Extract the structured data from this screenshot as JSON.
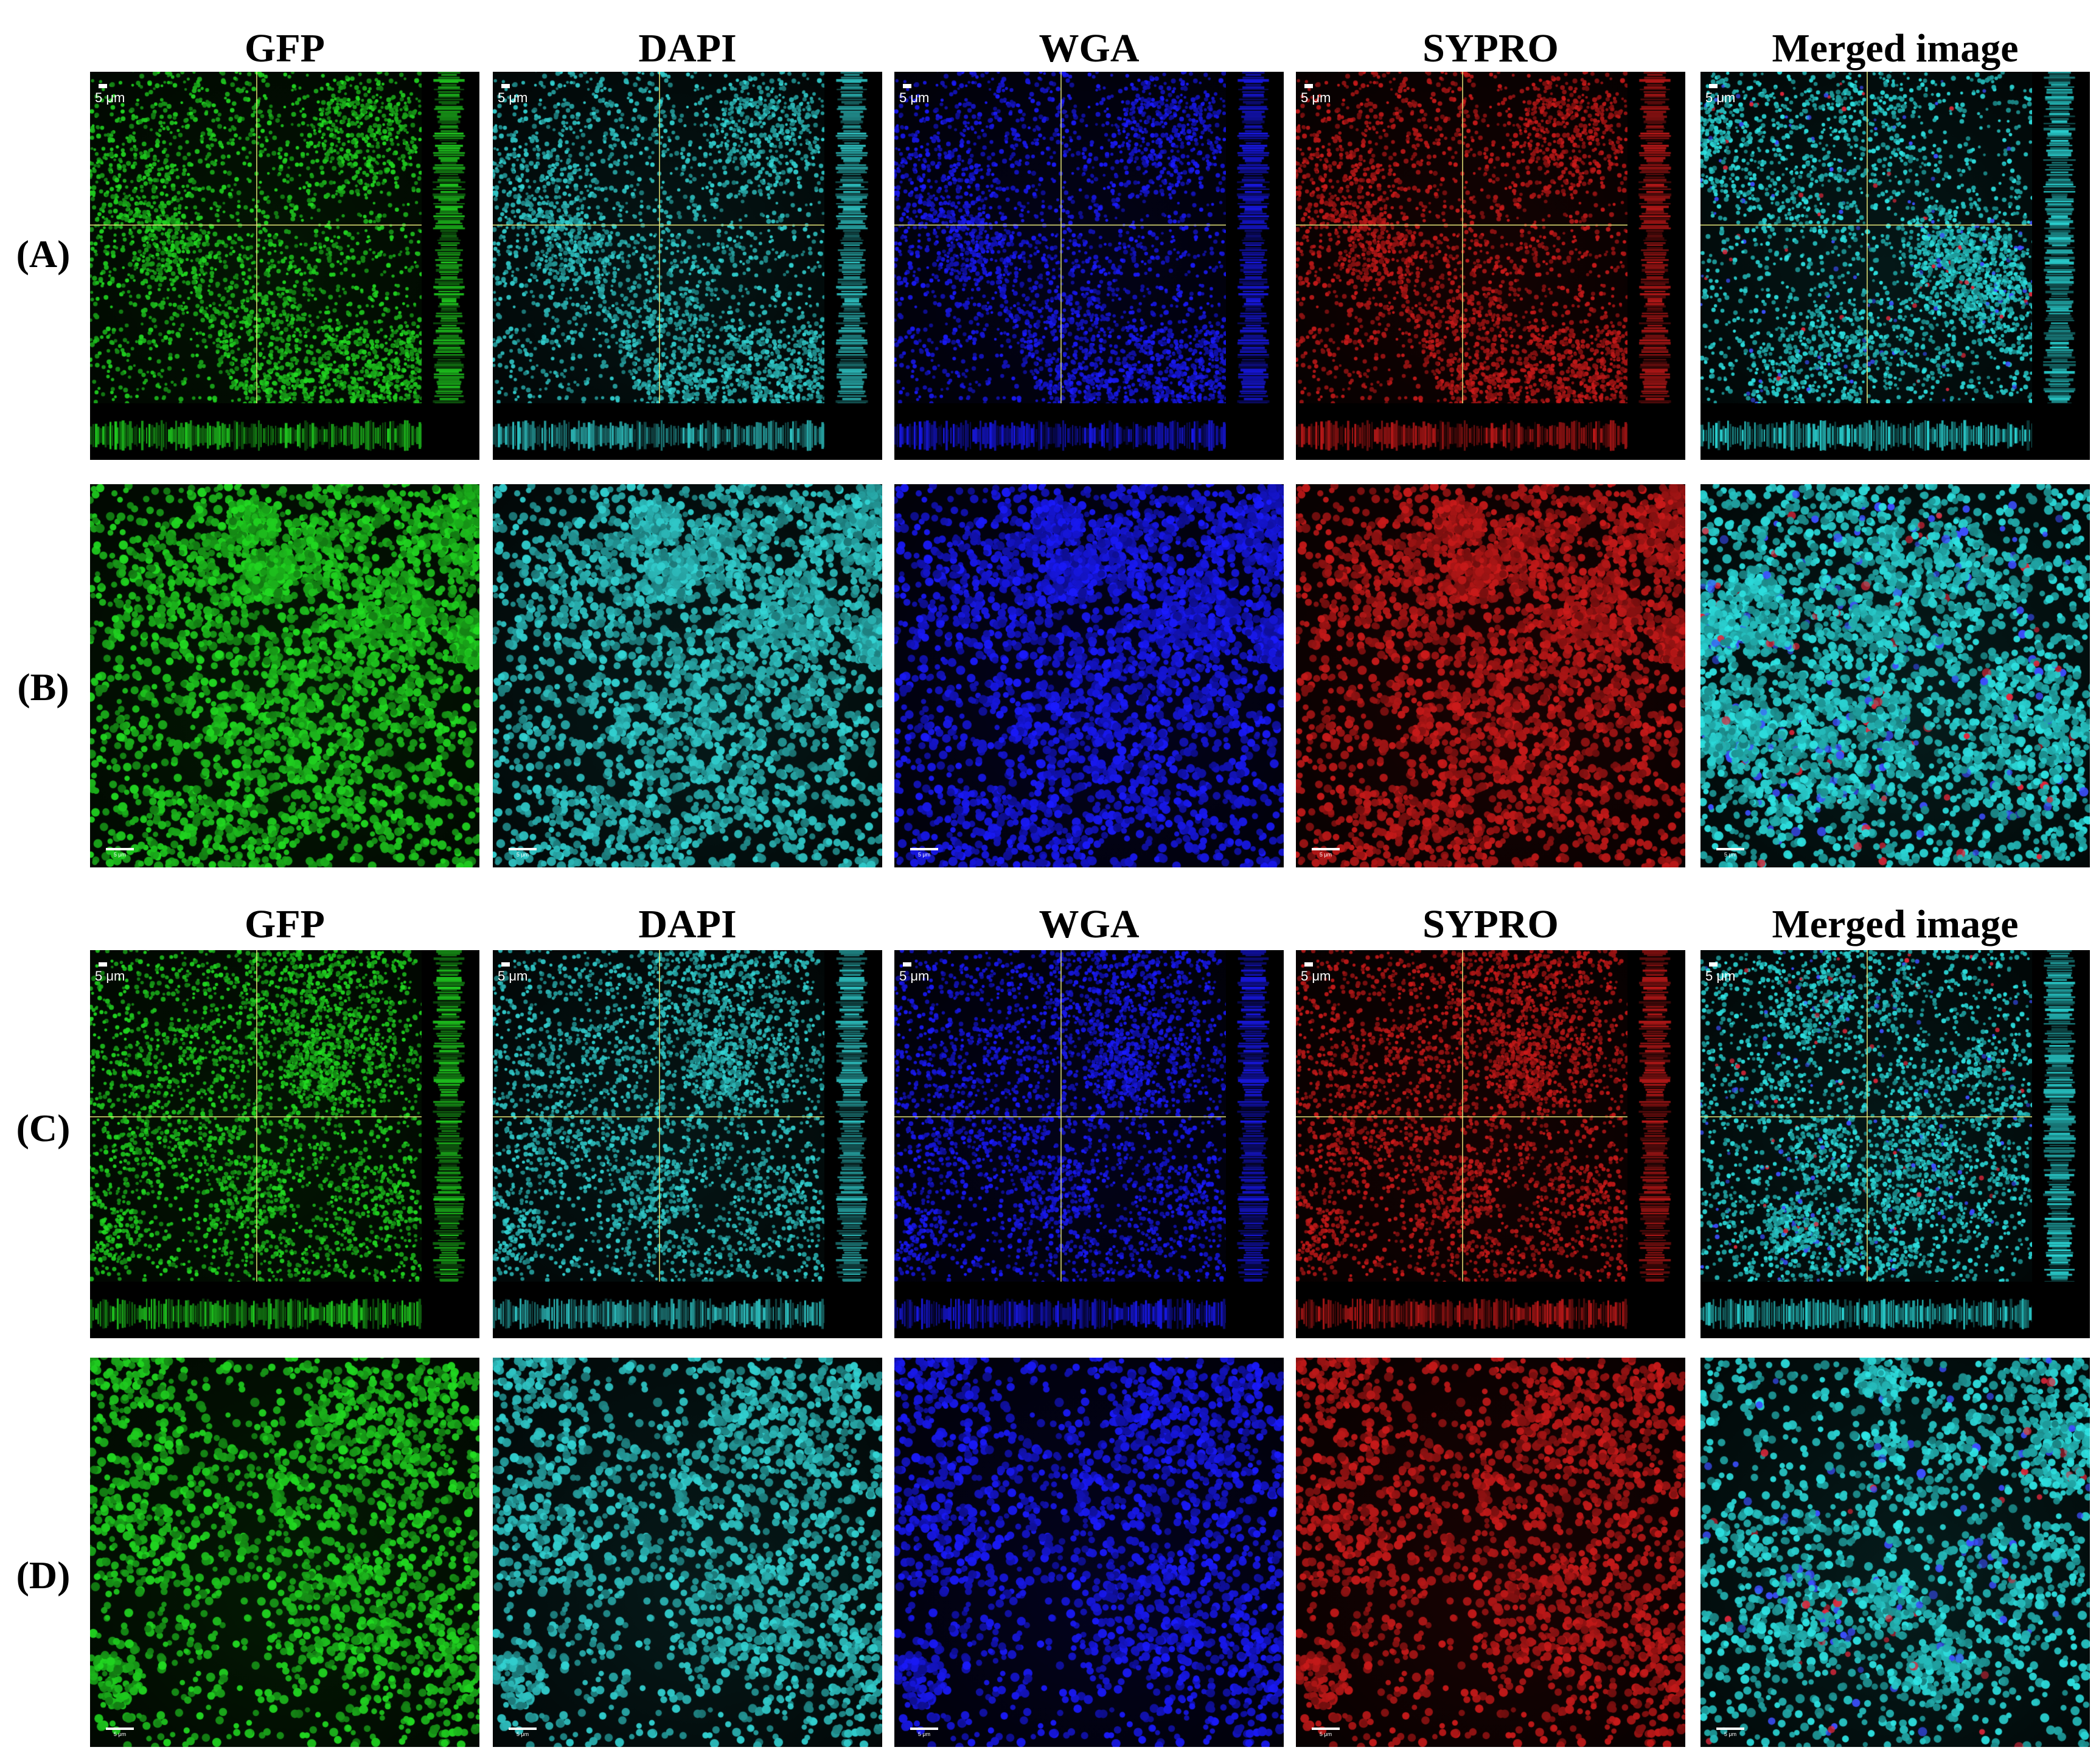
{
  "columns": [
    {
      "label": "GFP",
      "color": "#22dd22"
    },
    {
      "label": "DAPI",
      "color": "#33d6d6"
    },
    {
      "label": "WGA",
      "color": "#1a1aff"
    },
    {
      "label": "SYPRO",
      "color": "#cc1a1a"
    },
    {
      "label": "Merged image",
      "color": "#2ee6e6"
    }
  ],
  "header_rows": [
    {
      "labels": [
        "GFP",
        "DAPI",
        "WGA",
        "SYPRO",
        "Merged image"
      ]
    },
    {
      "labels": [
        "GFP",
        "DAPI",
        "WGA",
        "SYPRO",
        "Merged image"
      ]
    }
  ],
  "rows": [
    {
      "label": "(A)",
      "view": "orthogonal"
    },
    {
      "label": "(B)",
      "view": "3d"
    },
    {
      "label": "(C)",
      "view": "orthogonal"
    },
    {
      "label": "(D)",
      "view": "3d"
    }
  ],
  "scale_bar_label": "5 μm",
  "crosshair_color": "#e6e678"
}
